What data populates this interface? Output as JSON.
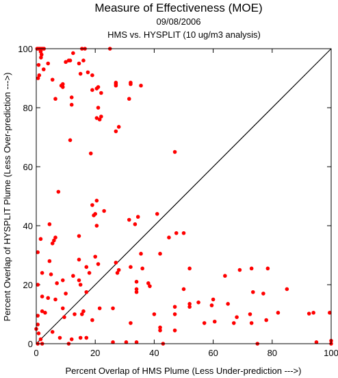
{
  "chart_data": {
    "type": "scatter",
    "title": "Measure of Effectiveness (MOE)",
    "subtitle_lines": [
      "09/08/2006",
      "HMS vs. HYSPLIT  (10 ug/m3 analysis)"
    ],
    "xlabel": "Percent Overlap of HMS Plume (Less Under-prediction --->)",
    "ylabel": "Percent Overlap of HYSPLIT Plume (Less Over-prediction --->)",
    "xlim": [
      0,
      100
    ],
    "ylim": [
      0,
      100
    ],
    "xticks": [
      0,
      20,
      40,
      60,
      80,
      100
    ],
    "yticks": [
      0,
      20,
      40,
      60,
      80,
      100
    ],
    "x_tick_labels": [
      "0",
      "20",
      "40",
      "60",
      "80",
      "100"
    ],
    "y_tick_labels": [
      "0",
      "20",
      "40",
      "60",
      "80",
      "100"
    ],
    "grid": false,
    "reference_line": {
      "from": [
        0,
        0
      ],
      "to": [
        100,
        100
      ],
      "color": "#000000"
    },
    "point_color": "#ff0000",
    "points": [
      [
        0.3,
        100
      ],
      [
        0.6,
        100
      ],
      [
        1.0,
        100
      ],
      [
        1.4,
        100
      ],
      [
        1.8,
        100
      ],
      [
        2.2,
        100
      ],
      [
        2.6,
        100
      ],
      [
        1.5,
        99
      ],
      [
        1.8,
        98
      ],
      [
        1.6,
        97
      ],
      [
        0.8,
        94.5
      ],
      [
        2.5,
        93
      ],
      [
        4,
        95
      ],
      [
        1,
        91
      ],
      [
        0.6,
        90
      ],
      [
        5.5,
        89.5
      ],
      [
        9,
        88
      ],
      [
        9,
        87
      ],
      [
        8.5,
        87.5
      ],
      [
        10,
        95.5
      ],
      [
        11,
        96
      ],
      [
        11.5,
        96
      ],
      [
        12.5,
        98.5
      ],
      [
        15.5,
        100
      ],
      [
        16.5,
        100
      ],
      [
        25,
        100
      ],
      [
        14.5,
        95
      ],
      [
        16,
        96
      ],
      [
        15,
        91.5
      ],
      [
        17.5,
        92
      ],
      [
        19,
        91
      ],
      [
        6.5,
        83
      ],
      [
        12,
        81
      ],
      [
        12,
        83.5
      ],
      [
        19,
        86
      ],
      [
        21,
        87
      ],
      [
        20.5,
        86.5
      ],
      [
        27,
        88
      ],
      [
        27,
        88.5
      ],
      [
        27,
        87.5
      ],
      [
        32,
        88.5
      ],
      [
        32,
        88
      ],
      [
        35.5,
        87.5
      ],
      [
        22,
        85
      ],
      [
        21,
        80
      ],
      [
        21.5,
        76
      ],
      [
        20.5,
        76.5
      ],
      [
        22,
        77
      ],
      [
        31.5,
        83
      ],
      [
        28,
        73.5
      ],
      [
        27,
        72
      ],
      [
        11.5,
        69
      ],
      [
        18.5,
        64.5
      ],
      [
        47,
        65
      ],
      [
        7.5,
        51.5
      ],
      [
        20.5,
        48.5
      ],
      [
        19,
        47
      ],
      [
        23,
        45
      ],
      [
        20,
        44
      ],
      [
        19.5,
        43.5
      ],
      [
        31.5,
        42
      ],
      [
        33.5,
        40.5
      ],
      [
        34.5,
        43
      ],
      [
        41,
        44
      ],
      [
        20.5,
        40
      ],
      [
        4.5,
        40.5
      ],
      [
        6.5,
        36
      ],
      [
        6,
        35
      ],
      [
        14.5,
        36.5
      ],
      [
        5.5,
        34
      ],
      [
        45,
        36
      ],
      [
        47.5,
        37.5
      ],
      [
        50,
        37.5
      ],
      [
        1.5,
        35.5
      ],
      [
        0.5,
        31
      ],
      [
        35.5,
        30.5
      ],
      [
        42,
        30.5
      ],
      [
        20,
        29.5
      ],
      [
        27,
        27.5
      ],
      [
        14.5,
        28.5
      ],
      [
        4.5,
        28
      ],
      [
        17,
        26
      ],
      [
        21,
        27
      ],
      [
        32,
        26
      ],
      [
        36,
        25.5
      ],
      [
        27.5,
        24
      ],
      [
        28,
        25
      ],
      [
        52,
        25.5
      ],
      [
        69,
        25
      ],
      [
        73,
        25.5
      ],
      [
        78.5,
        25.5
      ],
      [
        2,
        24
      ],
      [
        5,
        23.5
      ],
      [
        12.5,
        23
      ],
      [
        18,
        24
      ],
      [
        64,
        23
      ],
      [
        14.5,
        21.5
      ],
      [
        15,
        20
      ],
      [
        7,
        20.5
      ],
      [
        0.5,
        20
      ],
      [
        9,
        21.5
      ],
      [
        34,
        21
      ],
      [
        38.5,
        19.5
      ],
      [
        38,
        20.5
      ],
      [
        34,
        18.5
      ],
      [
        34,
        17.5
      ],
      [
        85,
        18.5
      ],
      [
        50,
        18.5
      ],
      [
        73.5,
        17.5
      ],
      [
        77,
        17
      ],
      [
        2,
        16
      ],
      [
        4,
        15.5
      ],
      [
        10,
        17
      ],
      [
        17,
        17.5
      ],
      [
        6.5,
        15
      ],
      [
        52,
        13.5
      ],
      [
        52,
        12.5
      ],
      [
        55,
        14
      ],
      [
        59.5,
        13
      ],
      [
        60,
        15
      ],
      [
        65,
        13.5
      ],
      [
        47,
        12.5
      ],
      [
        21.5,
        12
      ],
      [
        26,
        12
      ],
      [
        9,
        12
      ],
      [
        16,
        11
      ],
      [
        15.5,
        10
      ],
      [
        2,
        11
      ],
      [
        3,
        10.5
      ],
      [
        0.5,
        9.5
      ],
      [
        40,
        10
      ],
      [
        47,
        10
      ],
      [
        68,
        9
      ],
      [
        72.5,
        10
      ],
      [
        82,
        10.5
      ],
      [
        92.5,
        10.2
      ],
      [
        94,
        10.5
      ],
      [
        99.5,
        10.5
      ],
      [
        57,
        7
      ],
      [
        60.5,
        7.5
      ],
      [
        67,
        7
      ],
      [
        73,
        7
      ],
      [
        78,
        8
      ],
      [
        32,
        7
      ],
      [
        19,
        8
      ],
      [
        13,
        10
      ],
      [
        9.5,
        9
      ],
      [
        42,
        5.5
      ],
      [
        42,
        4.5
      ],
      [
        47,
        4.5
      ],
      [
        5.5,
        4
      ],
      [
        8,
        2
      ],
      [
        0.5,
        6.5
      ],
      [
        0,
        5
      ],
      [
        0.8,
        3.5
      ],
      [
        1.5,
        1.5
      ],
      [
        12,
        1.5
      ],
      [
        17,
        2
      ],
      [
        15,
        2
      ],
      [
        26,
        0.5
      ],
      [
        30.5,
        0.5
      ],
      [
        34,
        0.5
      ],
      [
        43,
        0
      ],
      [
        75,
        0
      ],
      [
        95,
        0.5
      ],
      [
        100,
        1
      ],
      [
        100,
        0
      ],
      [
        0.5,
        0
      ],
      [
        2,
        0
      ],
      [
        11,
        0
      ]
    ]
  }
}
